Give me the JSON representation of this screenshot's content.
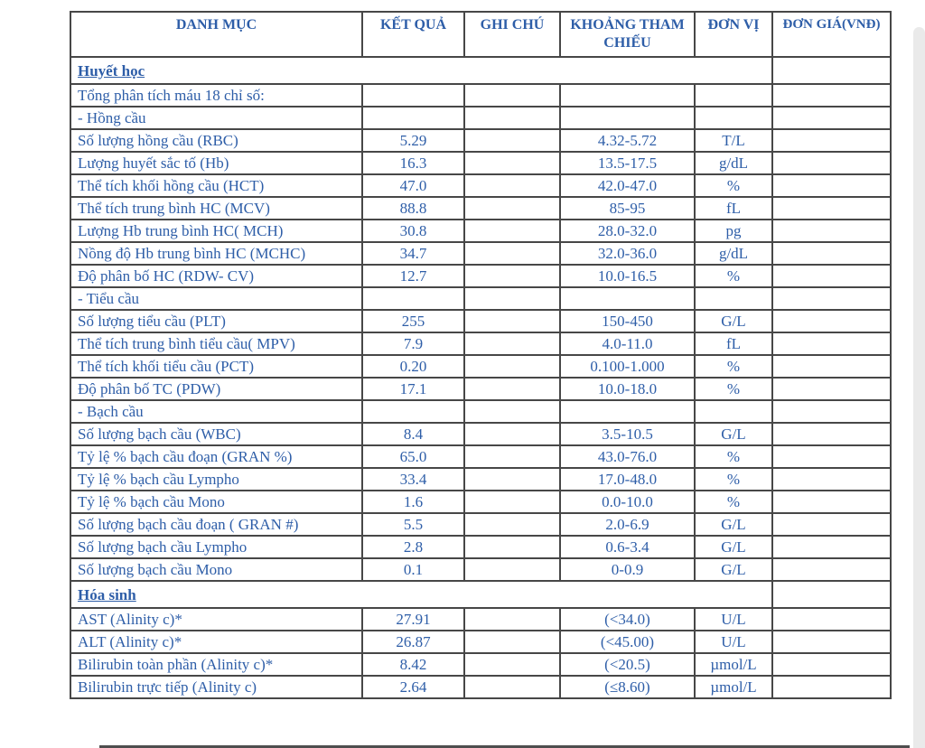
{
  "colors": {
    "text_blue": "#2e5ea8",
    "border_gray": "#474747",
    "edge_strip_gray": "#eaeaea"
  },
  "table": {
    "columns": [
      {
        "label": "DANH MỤC"
      },
      {
        "label": "KẾT QUẢ"
      },
      {
        "label": "GHI CHÚ"
      },
      {
        "label": "KHOẢNG THAM CHIẾU"
      },
      {
        "label": "ĐƠN VỊ"
      },
      {
        "label": "ĐƠN GIÁ(VNĐ)"
      }
    ],
    "rows": [
      {
        "type": "section",
        "name": "Huyết học",
        "price": ""
      },
      {
        "type": "data",
        "name": "Tổng phân tích máu 18 chỉ số:",
        "result": "",
        "note": "",
        "range": "",
        "unit": "",
        "price": ""
      },
      {
        "type": "data",
        "name": "- Hồng cầu",
        "result": "",
        "note": "",
        "range": "",
        "unit": "",
        "price": ""
      },
      {
        "type": "data",
        "name": "Số lượng hồng cầu (RBC)",
        "result": "5.29",
        "note": "",
        "range": "4.32-5.72",
        "unit": "T/L",
        "price": ""
      },
      {
        "type": "data",
        "name": "Lượng huyết sắc tố (Hb)",
        "result": "16.3",
        "note": "",
        "range": "13.5-17.5",
        "unit": "g/dL",
        "price": ""
      },
      {
        "type": "data",
        "name": "Thể tích khối hồng cầu (HCT)",
        "result": "47.0",
        "note": "",
        "range": "42.0-47.0",
        "unit": "%",
        "price": ""
      },
      {
        "type": "data",
        "name": "Thể tích trung bình HC (MCV)",
        "result": "88.8",
        "note": "",
        "range": "85-95",
        "unit": "fL",
        "price": ""
      },
      {
        "type": "data",
        "name": "Lượng Hb trung bình HC( MCH)",
        "result": "30.8",
        "note": "",
        "range": "28.0-32.0",
        "unit": "pg",
        "price": ""
      },
      {
        "type": "data",
        "name": "Nồng độ Hb trung bình HC (MCHC)",
        "result": "34.7",
        "note": "",
        "range": "32.0-36.0",
        "unit": "g/dL",
        "price": ""
      },
      {
        "type": "data",
        "name": "Độ phân bố HC (RDW- CV)",
        "result": "12.7",
        "note": "",
        "range": "10.0-16.5",
        "unit": "%",
        "price": ""
      },
      {
        "type": "data",
        "name": "- Tiểu cầu",
        "result": "",
        "note": "",
        "range": "",
        "unit": "",
        "price": ""
      },
      {
        "type": "data",
        "name": "Số lượng tiểu cầu (PLT)",
        "result": "255",
        "note": "",
        "range": "150-450",
        "unit": "G/L",
        "price": ""
      },
      {
        "type": "data",
        "name": "Thể tích trung bình tiểu cầu( MPV)",
        "result": "7.9",
        "note": "",
        "range": "4.0-11.0",
        "unit": "fL",
        "price": ""
      },
      {
        "type": "data",
        "name": "Thể tích khối tiểu cầu (PCT)",
        "result": "0.20",
        "note": "",
        "range": "0.100-1.000",
        "unit": "%",
        "price": ""
      },
      {
        "type": "data",
        "name": "Độ phân bố TC (PDW)",
        "result": "17.1",
        "note": "",
        "range": "10.0-18.0",
        "unit": "%",
        "price": ""
      },
      {
        "type": "data",
        "name": "- Bạch cầu",
        "result": "",
        "note": "",
        "range": "",
        "unit": "",
        "price": ""
      },
      {
        "type": "data",
        "name": "Số lượng bạch cầu (WBC)",
        "result": "8.4",
        "note": "",
        "range": "3.5-10.5",
        "unit": "G/L",
        "price": ""
      },
      {
        "type": "data",
        "name": "Tỷ lệ % bạch cầu đoạn (GRAN %)",
        "result": "65.0",
        "note": "",
        "range": "43.0-76.0",
        "unit": "%",
        "price": ""
      },
      {
        "type": "data",
        "name": "Tỷ lệ % bạch cầu Lympho",
        "result": "33.4",
        "note": "",
        "range": "17.0-48.0",
        "unit": "%",
        "price": ""
      },
      {
        "type": "data",
        "name": "Tỷ lệ % bạch cầu Mono",
        "result": "1.6",
        "note": "",
        "range": "0.0-10.0",
        "unit": "%",
        "price": ""
      },
      {
        "type": "data",
        "name": "Số lượng bạch cầu đoạn ( GRAN #)",
        "result": "5.5",
        "note": "",
        "range": "2.0-6.9",
        "unit": "G/L",
        "price": ""
      },
      {
        "type": "data",
        "name": "Số lượng bạch cầu Lympho",
        "result": "2.8",
        "note": "",
        "range": "0.6-3.4",
        "unit": "G/L",
        "price": ""
      },
      {
        "type": "data",
        "name": "Số lượng bạch cầu Mono",
        "result": "0.1",
        "note": "",
        "range": "0-0.9",
        "unit": "G/L",
        "price": ""
      },
      {
        "type": "section",
        "name": "Hóa sinh",
        "price": ""
      },
      {
        "type": "data",
        "name": "AST (Alinity c)*",
        "result": "27.91",
        "note": "",
        "range": "(<34.0)",
        "unit": "U/L",
        "price": ""
      },
      {
        "type": "data",
        "name": "ALT (Alinity c)*",
        "result": "26.87",
        "note": "",
        "range": "(<45.00)",
        "unit": "U/L",
        "price": ""
      },
      {
        "type": "data",
        "name": "Bilirubin toàn phần (Alinity c)*",
        "result": "8.42",
        "note": "",
        "range": "(<20.5)",
        "unit": "µmol/L",
        "price": ""
      },
      {
        "type": "data",
        "name": "Bilirubin trực tiếp (Alinity c)",
        "result": "2.64",
        "note": "",
        "range": "(≤8.60)",
        "unit": "µmol/L",
        "price": ""
      }
    ]
  }
}
